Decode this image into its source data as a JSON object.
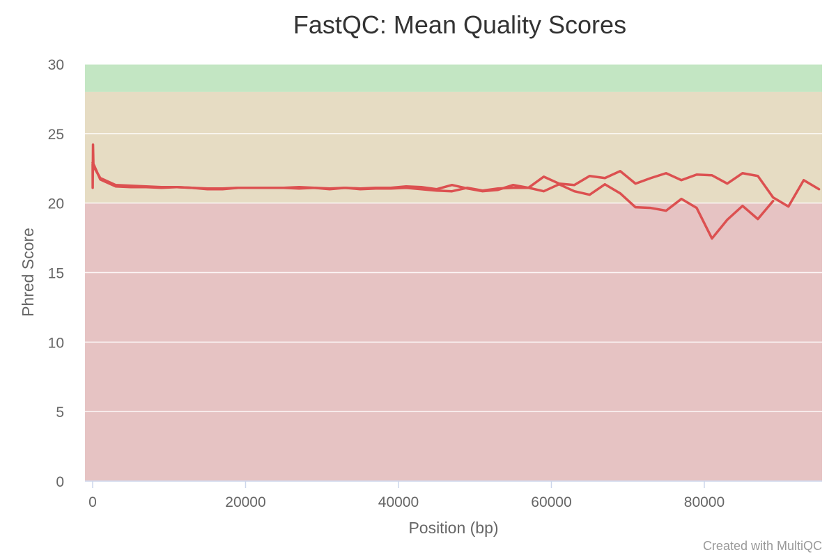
{
  "chart_data": {
    "type": "line",
    "title": "FastQC: Mean Quality Scores",
    "xlabel": "Position (bp)",
    "ylabel": "Phred Score",
    "xlim": [
      -1000,
      95400
    ],
    "ylim": [
      0,
      30
    ],
    "xticks": [
      0,
      20000,
      40000,
      60000,
      80000
    ],
    "yticks": [
      0,
      5,
      10,
      15,
      20,
      25,
      30
    ],
    "grid": true,
    "legend": "none",
    "bands": [
      {
        "from": 28,
        "to": 30,
        "color": "#c3e6c3"
      },
      {
        "from": 20,
        "to": 28,
        "color": "#e6dcc3"
      },
      {
        "from": 0,
        "to": 20,
        "color": "#e6c3c3"
      }
    ],
    "series_color": "#dc5050",
    "series": [
      {
        "x": [
          0,
          10,
          50,
          100,
          150,
          1000,
          3000,
          5000,
          7000,
          9000,
          11000,
          13000,
          15000,
          17000,
          19000,
          21000,
          23000,
          25000,
          27000,
          29000,
          31000,
          33000,
          35000,
          37000,
          39000,
          41000,
          43000,
          45000,
          47000,
          49000,
          51000,
          53000,
          55000,
          57000,
          59000,
          61000,
          63000,
          65000,
          67000,
          69000,
          71000,
          73000,
          75000,
          77000,
          79000,
          81000,
          83000,
          85000,
          87000,
          89000,
          91000,
          93000,
          95000
        ],
        "values": [
          22.8,
          21.1,
          24.2,
          22.8,
          22.6,
          21.8,
          21.3,
          21.25,
          21.2,
          21.15,
          21.15,
          21.1,
          21.05,
          21.05,
          21.1,
          21.1,
          21.1,
          21.1,
          21.15,
          21.1,
          21.05,
          21.1,
          21.05,
          21.1,
          21.1,
          21.2,
          21.15,
          21.0,
          21.3,
          21.05,
          20.85,
          20.95,
          21.3,
          21.1,
          21.9,
          21.4,
          21.3,
          21.95,
          21.8,
          22.3,
          21.4,
          21.8,
          22.15,
          21.65,
          22.05,
          22.0,
          21.4,
          22.15,
          21.95,
          20.4,
          19.75,
          21.65,
          21.0
        ]
      },
      {
        "x": [
          0,
          200,
          1000,
          3000,
          5000,
          7000,
          9000,
          11000,
          13000,
          15000,
          17000,
          19000,
          21000,
          23000,
          25000,
          27000,
          29000,
          31000,
          33000,
          35000,
          37000,
          39000,
          41000,
          43000,
          45000,
          47000,
          49000,
          51000,
          53000,
          55000,
          57000,
          59000,
          61000,
          63000,
          65000,
          67000,
          69000,
          71000,
          73000,
          75000,
          77000,
          79000,
          81000,
          83000,
          85000,
          87000,
          89000
        ],
        "values": [
          22.9,
          22.7,
          21.7,
          21.2,
          21.15,
          21.15,
          21.1,
          21.15,
          21.1,
          21.0,
          21.0,
          21.1,
          21.1,
          21.1,
          21.1,
          21.05,
          21.1,
          21.0,
          21.1,
          21.0,
          21.05,
          21.05,
          21.1,
          21.0,
          20.9,
          20.85,
          21.1,
          20.9,
          21.05,
          21.1,
          21.1,
          20.85,
          21.35,
          20.85,
          20.6,
          21.35,
          20.7,
          19.7,
          19.65,
          19.45,
          20.3,
          19.65,
          17.45,
          18.8,
          19.8,
          18.85,
          20.15
        ]
      }
    ]
  },
  "footer": {
    "credit": "Created with MultiQC"
  }
}
